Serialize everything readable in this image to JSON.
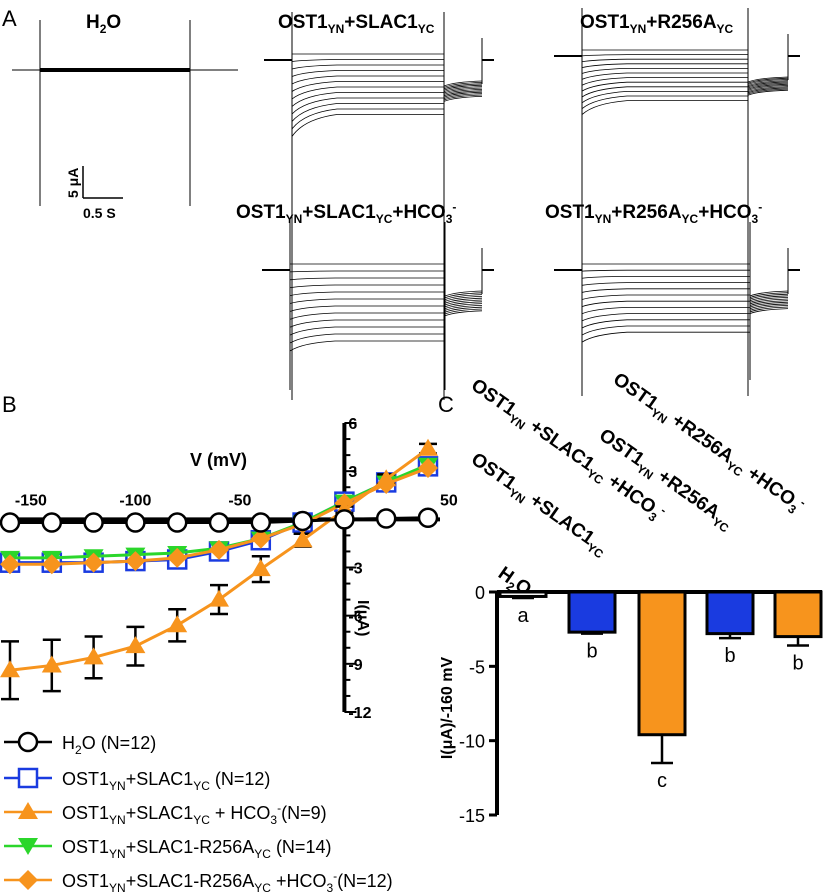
{
  "panel_letters": {
    "a": "A",
    "b": "B",
    "c": "C"
  },
  "panel_a": {
    "traces": [
      {
        "label": "H",
        "sub": "2",
        "rest": "O"
      },
      {
        "label": "OST1",
        "sub": "YN",
        "rest": "+SLAC1",
        "sub2": "YC"
      },
      {
        "label": "OST1",
        "sub": "YN",
        "rest": "+R256A",
        "sub2": "YC"
      },
      {
        "label": "OST1",
        "sub": "YN",
        "rest": "+SLAC1",
        "sub2": "YC",
        "rest2": "+HCO",
        "sub3": "3",
        "sup": "-"
      },
      {
        "label": "OST1",
        "sub": "YN",
        "rest": "+R256A",
        "sub2": "YC",
        "rest2": "+HCO",
        "sub3": "3",
        "sup": "-"
      }
    ],
    "scalebar": {
      "current": "5 μA",
      "time": "0.5 S"
    }
  },
  "chart_data": [
    {
      "type": "line",
      "panel": "B",
      "xlabel": "V (mV)",
      "ylabel": "I(μA)",
      "xlim": [
        -160,
        40
      ],
      "ylim": [
        -12,
        6
      ],
      "x_ticks": [
        -150,
        -100,
        -50,
        50
      ],
      "y_ticks": [
        6,
        3,
        -3,
        -6,
        -9,
        -12
      ],
      "x": [
        -160,
        -140,
        -120,
        -100,
        -80,
        -60,
        -40,
        -20,
        0,
        20,
        40
      ],
      "series": [
        {
          "name": "H2O (N=12)",
          "marker": "circle-open",
          "color": "#000000",
          "values": [
            -0.2,
            -0.2,
            -0.2,
            -0.2,
            -0.2,
            -0.2,
            -0.2,
            -0.1,
            0,
            0.05,
            0.1
          ],
          "error": []
        },
        {
          "name": "OST1YN+SLAC1YC (N=12)",
          "marker": "square-open",
          "color": "#1a3be0",
          "values": [
            -2.7,
            -2.7,
            -2.7,
            -2.6,
            -2.5,
            -2.0,
            -1.3,
            -0.2,
            1.1,
            2.3,
            3.3
          ],
          "error": []
        },
        {
          "name": "OST1YN+SLAC1YC + HCO3-(N=9)",
          "marker": "triangle-up-filled",
          "color": "#f7941d",
          "values": [
            -9.4,
            -9.1,
            -8.6,
            -7.9,
            -6.6,
            -5.0,
            -3.1,
            -1.3,
            0.6,
            2.5,
            4.4
          ],
          "error": [
            1.8,
            1.6,
            1.3,
            1.2,
            1.0,
            0.9,
            0.8,
            0.4,
            0.2,
            0.3,
            0.3
          ]
        },
        {
          "name": "OST1YN+SLAC1-R256AYC (N=14)",
          "marker": "triangle-down-filled",
          "color": "#2bd62b",
          "values": [
            -2.4,
            -2.4,
            -2.3,
            -2.2,
            -2.1,
            -1.8,
            -1.2,
            -0.2,
            1.1,
            2.3,
            3.4
          ],
          "error": []
        },
        {
          "name": "OST1YN+SLAC1-R256AYC +HCO3-(N=12)",
          "marker": "diamond-filled",
          "color": "#f7941d",
          "values": [
            -2.8,
            -2.8,
            -2.7,
            -2.6,
            -2.4,
            -1.9,
            -1.2,
            -0.3,
            1.0,
            2.2,
            3.2
          ],
          "error": []
        }
      ]
    },
    {
      "type": "bar",
      "panel": "C",
      "ylabel": "I(μA)/-160 mV",
      "ylim": [
        -15,
        0
      ],
      "y_ticks": [
        0,
        -5,
        -10,
        -15
      ],
      "categories": [
        "H2O",
        "OST1YN+SLAC1YC",
        "OST1YN+SLAC1YC+HCO3-",
        "OST1YN+R256AYC",
        "OST1YN+R256AYC+HCO3-"
      ],
      "values": [
        -0.3,
        -2.7,
        -9.6,
        -2.8,
        -3.0
      ],
      "error": [
        0.1,
        0.1,
        1.9,
        0.3,
        0.6
      ],
      "colors": [
        "#ffffff",
        "#1a3be0",
        "#f7941d",
        "#1a3be0",
        "#f7941d"
      ],
      "significance": [
        "a",
        "b",
        "c",
        "b",
        "b"
      ]
    }
  ]
}
